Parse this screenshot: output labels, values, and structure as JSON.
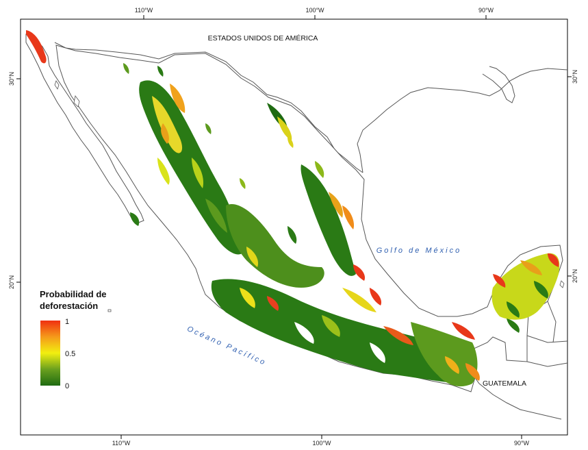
{
  "map": {
    "top_ticks": [
      "110°W",
      "100°W",
      "90°W"
    ],
    "bottom_ticks": [
      "110°W",
      "100°W",
      "90°W"
    ],
    "left_ticks": [
      "30°N",
      "20°N"
    ],
    "right_ticks": [
      "30°N",
      "20°N"
    ],
    "labels": {
      "usa": "ESTADOS UNIDOS DE AMÉRICA",
      "gulf": "Golfo de México",
      "pacific": "Océano Pacífico",
      "guatemala": "GUATEMALA"
    },
    "legend": {
      "title_line1": "Probabilidad de",
      "title_line2": "deforestación",
      "tick_high": "1",
      "tick_mid": "0.5",
      "tick_low": "0",
      "color_low": "#1f6b12",
      "color_mid": "#f2ef10",
      "color_high": "#f03010"
    },
    "colors": {
      "water_label": "#2f5fb0",
      "forest_dark": "#1f6b12",
      "forest_mid": "#6aa01e",
      "yellow": "#e6e21a",
      "orange": "#f39a1c",
      "red": "#e8341a",
      "outline": "#555555"
    }
  }
}
